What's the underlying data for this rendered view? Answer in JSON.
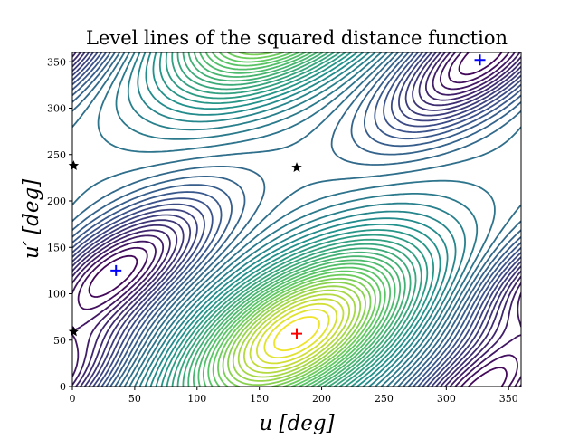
{
  "chart_data": {
    "type": "contour",
    "title": "Level lines of the squared distance function",
    "xlabel": "u [deg]",
    "ylabel": "u′ [deg]",
    "xlim": [
      0,
      360
    ],
    "ylim": [
      0,
      360
    ],
    "xticks": [
      0,
      50,
      100,
      150,
      200,
      250,
      300,
      350
    ],
    "yticks": [
      0,
      50,
      100,
      150,
      200,
      250,
      300,
      350
    ],
    "grid": false,
    "colormap": "viridis (yellow = low, purple = high)",
    "markers": [
      {
        "kind": "minimum",
        "symbol": "plus",
        "color": "#ff0000",
        "u": 180,
        "v": 57
      },
      {
        "kind": "maximum",
        "symbol": "plus",
        "color": "#0000ff",
        "u": 35,
        "v": 125
      },
      {
        "kind": "maximum",
        "symbol": "plus",
        "color": "#0000ff",
        "u": 327,
        "v": 352
      },
      {
        "kind": "saddle",
        "symbol": "star",
        "color": "#000000",
        "u": 1,
        "v": 238
      },
      {
        "kind": "saddle",
        "symbol": "star",
        "color": "#000000",
        "u": 180,
        "v": 236
      },
      {
        "kind": "saddle",
        "symbol": "star",
        "color": "#000000",
        "u": 1,
        "v": 59
      }
    ]
  }
}
